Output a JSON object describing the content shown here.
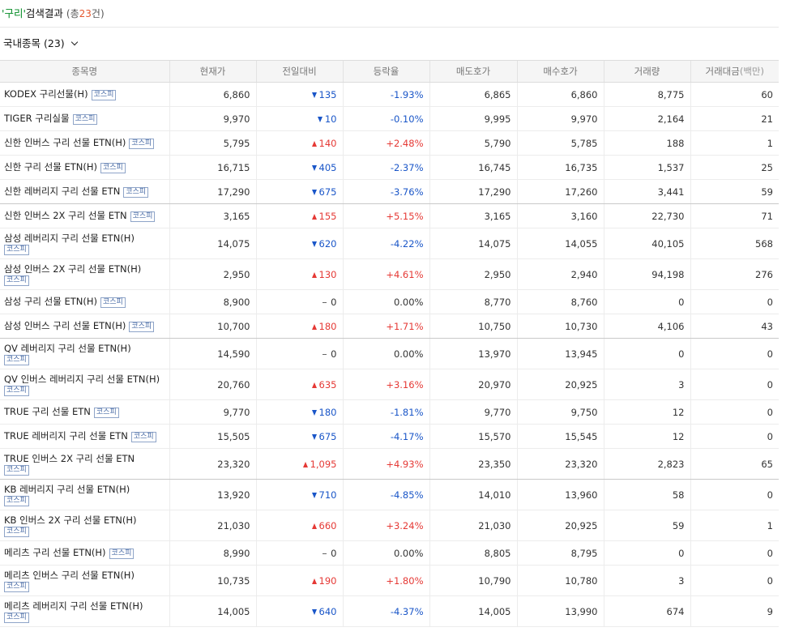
{
  "search": {
    "quote_open": "'",
    "query": "구리",
    "quote_close": "'",
    "suffix": "검색결과",
    "total_prefix": "(총",
    "total_count": "23",
    "total_suffix": "건)"
  },
  "section": {
    "title": "국내종목",
    "count": "(23)"
  },
  "colors": {
    "up": "#e53935",
    "down": "#1a56c8",
    "query": "#008a22",
    "count": "#e4572e",
    "badge": "#4a6ca6"
  },
  "columns": [
    "종목명",
    "현재가",
    "전일대비",
    "등락율",
    "매도호가",
    "매수호가",
    "거래량",
    "거래대금"
  ],
  "columns_unit": "(백만)",
  "rows": [
    {
      "name": "KODEX 구리선물(H)",
      "badge": "코스피",
      "price": "6,860",
      "dir": "down",
      "change": "135",
      "rate": "-1.93%",
      "ask": "6,865",
      "bid": "6,860",
      "volume": "8,775",
      "amount": "60"
    },
    {
      "name": "TIGER 구리실물",
      "badge": "코스피",
      "price": "9,970",
      "dir": "down",
      "change": "10",
      "rate": "-0.10%",
      "ask": "9,995",
      "bid": "9,970",
      "volume": "2,164",
      "amount": "21"
    },
    {
      "name": "신한 인버스 구리 선물 ETN(H)",
      "badge": "코스피",
      "price": "5,795",
      "dir": "up",
      "change": "140",
      "rate": "+2.48%",
      "ask": "5,790",
      "bid": "5,785",
      "volume": "188",
      "amount": "1"
    },
    {
      "name": "신한 구리 선물 ETN(H)",
      "badge": "코스피",
      "price": "16,715",
      "dir": "down",
      "change": "405",
      "rate": "-2.37%",
      "ask": "16,745",
      "bid": "16,735",
      "volume": "1,537",
      "amount": "25"
    },
    {
      "name": "신한 레버리지 구리 선물 ETN",
      "badge": "코스피",
      "price": "17,290",
      "dir": "down",
      "change": "675",
      "rate": "-3.76%",
      "ask": "17,290",
      "bid": "17,260",
      "volume": "3,441",
      "amount": "59"
    },
    {
      "name": "신한 인버스 2X 구리 선물 ETN",
      "badge": "코스피",
      "price": "3,165",
      "dir": "up",
      "change": "155",
      "rate": "+5.15%",
      "ask": "3,165",
      "bid": "3,160",
      "volume": "22,730",
      "amount": "71"
    },
    {
      "name": "삼성 레버리지 구리 선물 ETN(H)",
      "badge": "코스피",
      "price": "14,075",
      "dir": "down",
      "change": "620",
      "rate": "-4.22%",
      "ask": "14,075",
      "bid": "14,055",
      "volume": "40,105",
      "amount": "568"
    },
    {
      "name": "삼성 인버스 2X 구리 선물 ETN(H)",
      "badge": "코스피",
      "price": "2,950",
      "dir": "up",
      "change": "130",
      "rate": "+4.61%",
      "ask": "2,950",
      "bid": "2,940",
      "volume": "94,198",
      "amount": "276"
    },
    {
      "name": "삼성 구리 선물 ETN(H)",
      "badge": "코스피",
      "price": "8,900",
      "dir": "flat",
      "change": "0",
      "rate": "0.00%",
      "ask": "8,770",
      "bid": "8,760",
      "volume": "0",
      "amount": "0"
    },
    {
      "name": "삼성 인버스 구리 선물 ETN(H)",
      "badge": "코스피",
      "price": "10,700",
      "dir": "up",
      "change": "180",
      "rate": "+1.71%",
      "ask": "10,750",
      "bid": "10,730",
      "volume": "4,106",
      "amount": "43"
    },
    {
      "name": "QV 레버리지 구리 선물 ETN(H)",
      "badge": "코스피",
      "price": "14,590",
      "dir": "flat",
      "change": "0",
      "rate": "0.00%",
      "ask": "13,970",
      "bid": "13,945",
      "volume": "0",
      "amount": "0"
    },
    {
      "name": "QV 인버스 레버리지 구리 선물 ETN(H)",
      "badge": "코스피",
      "price": "20,760",
      "dir": "up",
      "change": "635",
      "rate": "+3.16%",
      "ask": "20,970",
      "bid": "20,925",
      "volume": "3",
      "amount": "0"
    },
    {
      "name": "TRUE 구리 선물 ETN",
      "badge": "코스피",
      "price": "9,770",
      "dir": "down",
      "change": "180",
      "rate": "-1.81%",
      "ask": "9,770",
      "bid": "9,750",
      "volume": "12",
      "amount": "0"
    },
    {
      "name": "TRUE 레버리지 구리 선물 ETN",
      "badge": "코스피",
      "price": "15,505",
      "dir": "down",
      "change": "675",
      "rate": "-4.17%",
      "ask": "15,570",
      "bid": "15,545",
      "volume": "12",
      "amount": "0"
    },
    {
      "name": "TRUE 인버스 2X 구리 선물 ETN",
      "badge": "코스피",
      "price": "23,320",
      "dir": "up",
      "change": "1,095",
      "rate": "+4.93%",
      "ask": "23,350",
      "bid": "23,320",
      "volume": "2,823",
      "amount": "65"
    },
    {
      "name": "KB 레버리지 구리 선물 ETN(H)",
      "badge": "코스피",
      "price": "13,920",
      "dir": "down",
      "change": "710",
      "rate": "-4.85%",
      "ask": "14,010",
      "bid": "13,960",
      "volume": "58",
      "amount": "0"
    },
    {
      "name": "KB 인버스 2X 구리 선물 ETN(H)",
      "badge": "코스피",
      "price": "21,030",
      "dir": "up",
      "change": "660",
      "rate": "+3.24%",
      "ask": "21,030",
      "bid": "20,925",
      "volume": "59",
      "amount": "1"
    },
    {
      "name": "메리츠 구리 선물 ETN(H)",
      "badge": "코스피",
      "price": "8,990",
      "dir": "flat",
      "change": "0",
      "rate": "0.00%",
      "ask": "8,805",
      "bid": "8,795",
      "volume": "0",
      "amount": "0"
    },
    {
      "name": "메리츠 인버스 구리 선물 ETN(H)",
      "badge": "코스피",
      "price": "10,735",
      "dir": "up",
      "change": "190",
      "rate": "+1.80%",
      "ask": "10,790",
      "bid": "10,780",
      "volume": "3",
      "amount": "0"
    },
    {
      "name": "메리츠 레버리지 구리 선물 ETN(H)",
      "badge": "코스피",
      "price": "14,005",
      "dir": "down",
      "change": "640",
      "rate": "-4.37%",
      "ask": "14,005",
      "bid": "13,990",
      "volume": "674",
      "amount": "9"
    }
  ]
}
